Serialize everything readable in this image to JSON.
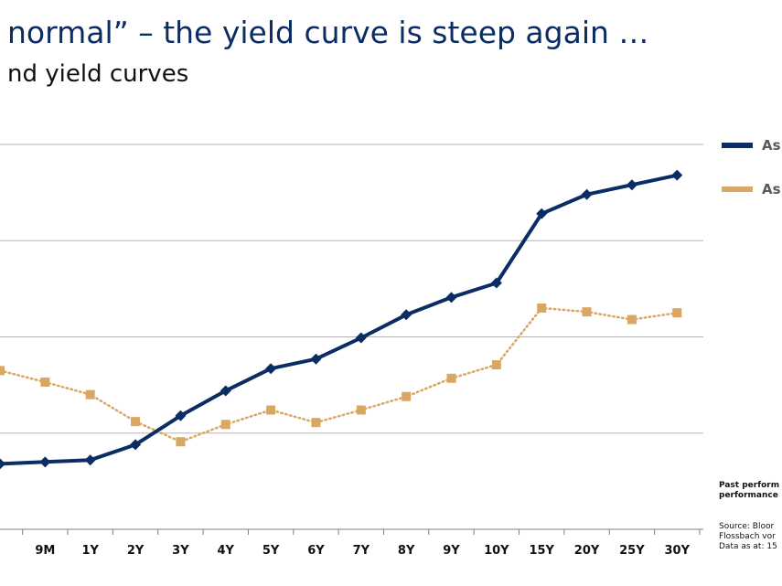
{
  "header": {
    "title": "normal” – the yield curve is steep again …",
    "subtitle": "nd yield curves"
  },
  "legend": [
    {
      "label": "As",
      "color": "#0b2d63"
    },
    {
      "label": "As",
      "color": "#d9a761"
    }
  ],
  "notes": {
    "past_performance": [
      "Past perform",
      "performance"
    ],
    "source": [
      "Source: Bloor",
      "Flossbach vor",
      "Data as at: 15"
    ]
  },
  "chart_data": {
    "type": "line",
    "title": "",
    "xlabel": "",
    "ylabel": "",
    "ylim": [
      0,
      4
    ],
    "grid": true,
    "legend_position": "top-right",
    "categories": [
      "",
      "9M",
      "1Y",
      "2Y",
      "3Y",
      "4Y",
      "5Y",
      "6Y",
      "7Y",
      "8Y",
      "9Y",
      "10Y",
      "15Y",
      "20Y",
      "25Y",
      "30Y"
    ],
    "series": [
      {
        "color": "#0b2d63",
        "style": "solid",
        "marker": "diamond",
        "values": [
          0.68,
          0.7,
          0.72,
          0.88,
          1.18,
          1.44,
          1.67,
          1.77,
          1.99,
          2.23,
          2.41,
          2.56,
          3.28,
          3.48,
          3.58,
          3.68
        ]
      },
      {
        "color": "#d9a761",
        "style": "dotted",
        "marker": "square",
        "values": [
          1.65,
          1.53,
          1.4,
          1.12,
          0.91,
          1.09,
          1.24,
          1.11,
          1.24,
          1.38,
          1.57,
          1.71,
          2.3,
          2.26,
          2.18,
          2.25
        ]
      }
    ]
  }
}
